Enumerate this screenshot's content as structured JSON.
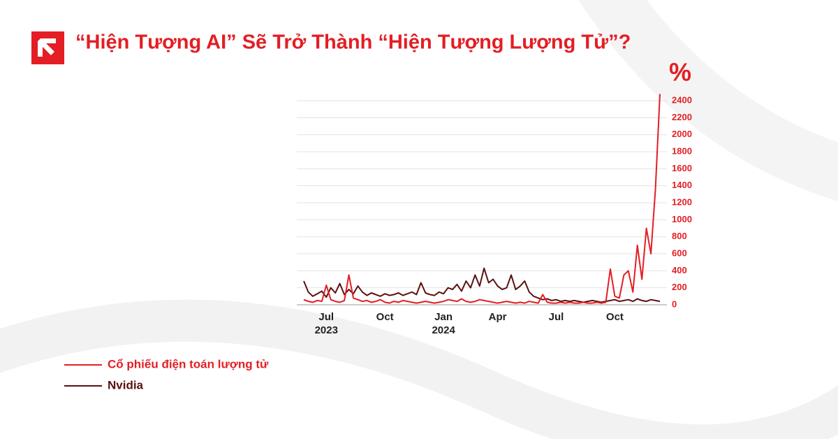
{
  "chart_data": {
    "type": "line",
    "title": "“Hiện Tượng AI” Sẽ Trở Thành “Hiện Tượng Lượng Tử”?",
    "y_label": "%",
    "categories": [
      null,
      null,
      null,
      null,
      null,
      "Jul\n2023",
      null,
      null,
      null,
      null,
      null,
      null,
      null,
      null,
      null,
      null,
      null,
      null,
      "Oct",
      null,
      null,
      null,
      null,
      null,
      null,
      null,
      null,
      null,
      null,
      null,
      null,
      "Jan\n2024",
      null,
      null,
      null,
      null,
      null,
      null,
      null,
      null,
      null,
      null,
      null,
      "Apr",
      null,
      null,
      null,
      null,
      null,
      null,
      null,
      null,
      null,
      null,
      null,
      null,
      "Jul",
      null,
      null,
      null,
      null,
      null,
      null,
      null,
      null,
      null,
      null,
      null,
      null,
      "Oct",
      null,
      null,
      null,
      null,
      null,
      null,
      null,
      null,
      null,
      null
    ],
    "series": [
      {
        "name": "Cổ phiếu điện toán lượng tử",
        "color": "#e31e24",
        "values": [
          60,
          40,
          30,
          50,
          40,
          230,
          60,
          40,
          30,
          50,
          350,
          80,
          60,
          40,
          50,
          30,
          40,
          60,
          30,
          20,
          40,
          30,
          50,
          40,
          30,
          20,
          30,
          40,
          30,
          20,
          30,
          40,
          60,
          50,
          40,
          70,
          40,
          30,
          40,
          60,
          50,
          40,
          30,
          20,
          30,
          40,
          30,
          20,
          30,
          20,
          40,
          30,
          20,
          120,
          30,
          20,
          20,
          30,
          20,
          30,
          20,
          20,
          30,
          20,
          20,
          30,
          20,
          30,
          420,
          100,
          80,
          350,
          400,
          150,
          700,
          300,
          900,
          600,
          1350,
          2480
        ]
      },
      {
        "name": "Nvidia",
        "color": "#5c1010",
        "values": [
          280,
          150,
          100,
          130,
          160,
          90,
          200,
          140,
          250,
          120,
          180,
          130,
          220,
          150,
          110,
          140,
          120,
          100,
          130,
          110,
          120,
          140,
          110,
          130,
          150,
          120,
          260,
          140,
          120,
          110,
          150,
          130,
          200,
          180,
          240,
          160,
          280,
          200,
          350,
          220,
          430,
          260,
          300,
          220,
          180,
          200,
          350,
          180,
          220,
          280,
          150,
          100,
          80,
          60,
          70,
          50,
          60,
          40,
          50,
          40,
          50,
          40,
          30,
          40,
          50,
          40,
          30,
          40,
          50,
          60,
          40,
          50,
          60,
          40,
          70,
          50,
          40,
          60,
          50,
          40
        ]
      }
    ],
    "ylim": [
      0,
      2500
    ],
    "yticks": [
      0,
      200,
      400,
      600,
      800,
      1000,
      1200,
      1400,
      1600,
      1800,
      2000,
      2200,
      2400
    ],
    "grid": true
  }
}
